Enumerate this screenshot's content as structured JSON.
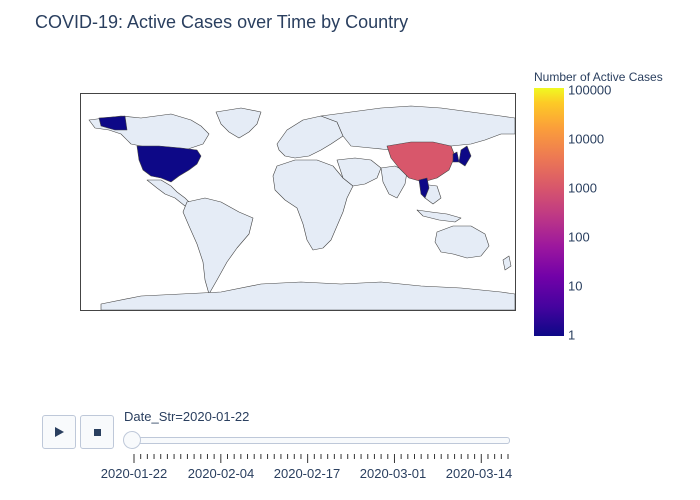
{
  "title": "COVID-19: Active Cases over Time by Country",
  "colorbar": {
    "title": "Number of Active Cases",
    "scale": "log",
    "ticks": [
      "100000",
      "10000",
      "1000",
      "100",
      "10",
      "1"
    ],
    "colors": [
      "#0d0887",
      "#46039f",
      "#7201a8",
      "#9c179e",
      "#bd3786",
      "#d8576b",
      "#ed7953",
      "#fb9f3a",
      "#fdca26",
      "#f0f921"
    ]
  },
  "map": {
    "land_color": "#e5ecf6",
    "border_color": "#444444",
    "highlighted_countries": [
      {
        "name": "United States",
        "active_cases": 1
      },
      {
        "name": "China",
        "active_cases": 550
      },
      {
        "name": "Thailand",
        "active_cases": 2
      },
      {
        "name": "Japan",
        "active_cases": 2
      },
      {
        "name": "South Korea",
        "active_cases": 1
      },
      {
        "name": "Taiwan",
        "active_cases": 1
      }
    ]
  },
  "animation": {
    "play_icon": "play-icon",
    "stop_icon": "stop-icon",
    "current_label": "Date_Str=2020-01-22",
    "slider_value": "2020-01-22",
    "tick_labels": [
      "2020-01-22",
      "2020-02-04",
      "2020-02-17",
      "2020-03-01",
      "2020-03-14"
    ]
  }
}
